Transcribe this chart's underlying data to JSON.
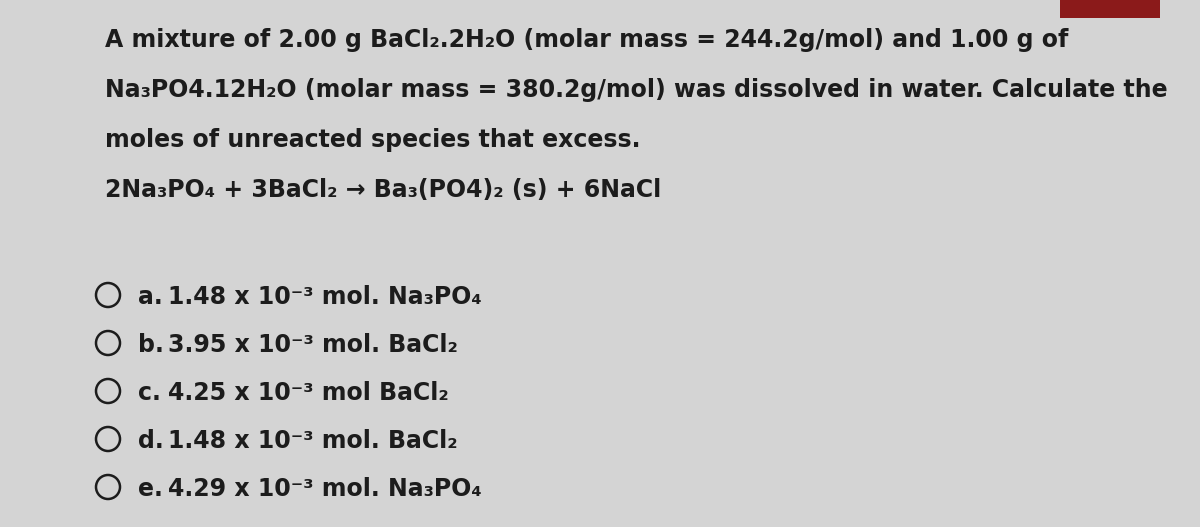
{
  "background_color": "#d4d4d4",
  "text_color": "#1c1c1c",
  "title_lines": [
    "A mixture of 2.00 g BaCl₂.2H₂O (molar mass = 244.2g/mol) and 1.00 g of",
    "Na₃PO4.12H₂O (molar mass = 380.2g/mol) was dissolved in water. Calculate the",
    "moles of unreacted species that excess.",
    "2Na₃PO₄ + 3BaCl₂ → Ba₃(PO4)₂ (s) + 6NaCl"
  ],
  "options": [
    {
      "label": "a.",
      "text": "1.48 x 10⁻³ mol. Na₃PO₄"
    },
    {
      "label": "b.",
      "text": "3.95 x 10⁻³ mol. BaCl₂"
    },
    {
      "label": "c.",
      "text": "4.25 x 10⁻³ mol BaCl₂"
    },
    {
      "label": "d.",
      "text": "1.48 x 10⁻³ mol. BaCl₂"
    },
    {
      "label": "e.",
      "text": "4.29 x 10⁻³ mol. Na₃PO₄"
    }
  ],
  "font_size_main": 17,
  "font_size_options": 17,
  "fig_width": 12.0,
  "fig_height": 5.27,
  "red_box_color": "#8b1a1a"
}
